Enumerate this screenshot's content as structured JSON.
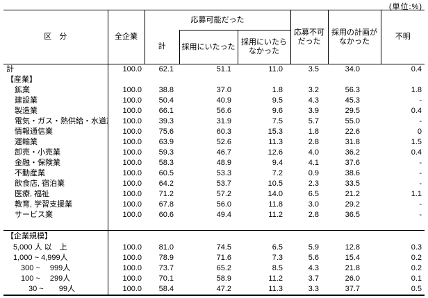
{
  "unit_label": "(単位:%)",
  "table": {
    "headers": {
      "category": "区　分",
      "all_companies": "全企業",
      "could_apply": "応募可能だった",
      "total": "計",
      "hired": "採用にいたった",
      "not_hired": "採用にいたら\nなかった",
      "could_not_apply": "応募不可\nだった",
      "no_hiring_plan": "採用の計画が\nなかった",
      "unknown": "不明"
    },
    "value_columns": [
      "全企業",
      "計",
      "採用にいたった",
      "採用にいたらなかった",
      "応募不可だった",
      "採用の計画がなかった",
      "不明"
    ],
    "rows": [
      {
        "label": "計",
        "type": "total",
        "values": [
          "100.0",
          "62.1",
          "51.1",
          "11.0",
          "3.5",
          "34.0",
          "0.4"
        ]
      },
      {
        "label": "【産業】",
        "type": "section",
        "values": []
      },
      {
        "label": "鉱業",
        "type": "item",
        "values": [
          "100.0",
          "38.8",
          "37.0",
          "1.8",
          "3.2",
          "56.3",
          "1.8"
        ]
      },
      {
        "label": "建設業",
        "type": "item",
        "values": [
          "100.0",
          "50.4",
          "40.9",
          "9.5",
          "4.3",
          "45.3",
          "-"
        ]
      },
      {
        "label": "製造業",
        "type": "item",
        "values": [
          "100.0",
          "66.1",
          "56.6",
          "9.6",
          "3.9",
          "29.5",
          "0.4"
        ]
      },
      {
        "label": "電気・ガス・熱供給・水道業",
        "type": "item",
        "values": [
          "100.0",
          "39.3",
          "31.9",
          "7.5",
          "5.7",
          "55.0",
          "-"
        ]
      },
      {
        "label": "情報通信業",
        "type": "item",
        "values": [
          "100.0",
          "75.6",
          "60.3",
          "15.3",
          "1.8",
          "22.6",
          "0"
        ]
      },
      {
        "label": "運輸業",
        "type": "item",
        "values": [
          "100.0",
          "63.9",
          "52.6",
          "11.3",
          "2.8",
          "31.8",
          "1.5"
        ]
      },
      {
        "label": "卸売・小売業",
        "type": "item",
        "values": [
          "100.0",
          "59.3",
          "46.7",
          "12.6",
          "4.0",
          "36.2",
          "0.4"
        ]
      },
      {
        "label": "金融・保険業",
        "type": "item",
        "values": [
          "100.0",
          "58.3",
          "48.9",
          "9.4",
          "4.1",
          "37.6",
          "-"
        ]
      },
      {
        "label": "不動産業",
        "type": "item",
        "values": [
          "100.0",
          "60.5",
          "53.3",
          "7.2",
          "0.9",
          "38.6",
          "-"
        ]
      },
      {
        "label": "飲食店, 宿泊業",
        "type": "item",
        "values": [
          "100.0",
          "64.2",
          "53.7",
          "10.5",
          "2.3",
          "33.5",
          "-"
        ]
      },
      {
        "label": "医療, 福祉",
        "type": "item",
        "values": [
          "100.0",
          "71.2",
          "57.2",
          "14.0",
          "6.5",
          "21.2",
          "1.1"
        ]
      },
      {
        "label": "教育, 学習支援業",
        "type": "item",
        "values": [
          "100.0",
          "67.8",
          "56.0",
          "11.8",
          "3.0",
          "29.2",
          "-"
        ]
      },
      {
        "label": "サービス業",
        "type": "item",
        "values": [
          "100.0",
          "60.6",
          "49.4",
          "11.2",
          "2.8",
          "36.5",
          "-"
        ]
      },
      {
        "label": "",
        "type": "spacer",
        "values": []
      },
      {
        "label": "【企業規模】",
        "type": "section",
        "separator": true,
        "values": []
      },
      {
        "label": "5,000 人 以　上",
        "type": "size",
        "values": [
          "100.0",
          "81.0",
          "74.5",
          "6.5",
          "5.9",
          "12.8",
          "0.3"
        ]
      },
      {
        "label": "1,000 ~ 4,999人",
        "type": "size",
        "values": [
          "100.0",
          "78.9",
          "71.6",
          "7.3",
          "5.6",
          "15.4",
          "0.2"
        ]
      },
      {
        "label": "　300 ~　 999人",
        "type": "size",
        "values": [
          "100.0",
          "73.7",
          "65.2",
          "8.5",
          "4.3",
          "21.8",
          "0.2"
        ]
      },
      {
        "label": "　100 ~　 299人",
        "type": "size",
        "values": [
          "100.0",
          "70.1",
          "58.9",
          "11.2",
          "3.7",
          "26.0",
          "0.1"
        ]
      },
      {
        "label": "　　30 ~　　99人",
        "type": "size",
        "values": [
          "100.0",
          "58.4",
          "47.2",
          "11.3",
          "3.3",
          "37.7",
          "0.5"
        ]
      }
    ]
  }
}
